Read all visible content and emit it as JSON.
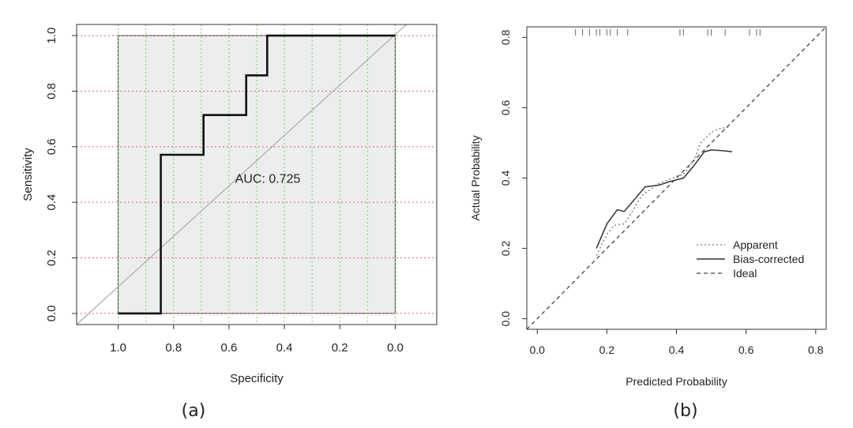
{
  "chart_data": [
    {
      "type": "line",
      "panel": "(a)",
      "xlabel": "Specificity",
      "ylabel": "Sensitivity",
      "xlim": [
        1.15,
        -0.15
      ],
      "ylim": [
        -0.04,
        1.04
      ],
      "x_reversed": true,
      "xticks": [
        "1.0",
        "0.8",
        "0.6",
        "0.4",
        "0.2",
        "0.0"
      ],
      "yticks": [
        "0.0",
        "0.2",
        "0.4",
        "0.6",
        "0.8",
        "1.0"
      ],
      "annotation": "AUC: 0.725",
      "grid": true,
      "series": [
        {
          "role": "roc",
          "x": [
            1.0,
            0.846,
            0.846,
            0.692,
            0.692,
            0.538,
            0.538,
            0.462,
            0.462,
            0.0
          ],
          "y": [
            0.0,
            0.0,
            0.571,
            0.571,
            0.714,
            0.714,
            0.857,
            0.857,
            1.0,
            1.0
          ]
        },
        {
          "role": "chance",
          "x": [
            1.15,
            -0.04
          ],
          "y": [
            -0.04,
            1.04
          ]
        }
      ],
      "colors": {
        "fill": "#eceeee",
        "roc": "#111111",
        "chance": "#aaaaaa",
        "grid_h": "#e0607a",
        "grid_v": "#7ccc6c"
      }
    },
    {
      "type": "line",
      "panel": "(b)",
      "xlabel": "Predicted Probability",
      "ylabel": "Actual Probability",
      "xlim": [
        -0.03,
        0.83
      ],
      "ylim": [
        -0.03,
        0.83
      ],
      "xticks": [
        "0.0",
        "0.2",
        "0.4",
        "0.6",
        "0.8"
      ],
      "yticks": [
        "0.0",
        "0.2",
        "0.4",
        "0.6",
        "0.8"
      ],
      "grid": false,
      "legend": "bottom-right",
      "rug_x": [
        0.11,
        0.13,
        0.15,
        0.17,
        0.18,
        0.2,
        0.21,
        0.23,
        0.26,
        0.41,
        0.42,
        0.49,
        0.5,
        0.54,
        0.61,
        0.63,
        0.64
      ],
      "series": [
        {
          "name": "Apparent",
          "x": [
            0.17,
            0.2,
            0.22,
            0.25,
            0.27,
            0.3,
            0.35,
            0.4,
            0.42,
            0.45,
            0.47,
            0.5,
            0.52,
            0.55
          ],
          "y": [
            0.18,
            0.24,
            0.265,
            0.27,
            0.3,
            0.35,
            0.385,
            0.405,
            0.41,
            0.45,
            0.5,
            0.53,
            0.54,
            0.545
          ]
        },
        {
          "name": "Bias-corrected",
          "x": [
            0.17,
            0.2,
            0.23,
            0.25,
            0.28,
            0.31,
            0.35,
            0.38,
            0.42,
            0.45,
            0.48,
            0.5,
            0.53,
            0.56
          ],
          "y": [
            0.2,
            0.27,
            0.31,
            0.305,
            0.34,
            0.375,
            0.38,
            0.39,
            0.4,
            0.435,
            0.475,
            0.48,
            0.478,
            0.475
          ]
        },
        {
          "name": "Ideal",
          "x": [
            -0.03,
            0.83
          ],
          "y": [
            -0.03,
            0.83
          ]
        }
      ]
    }
  ],
  "captions": {
    "a": "(a)",
    "b": "(b)"
  }
}
